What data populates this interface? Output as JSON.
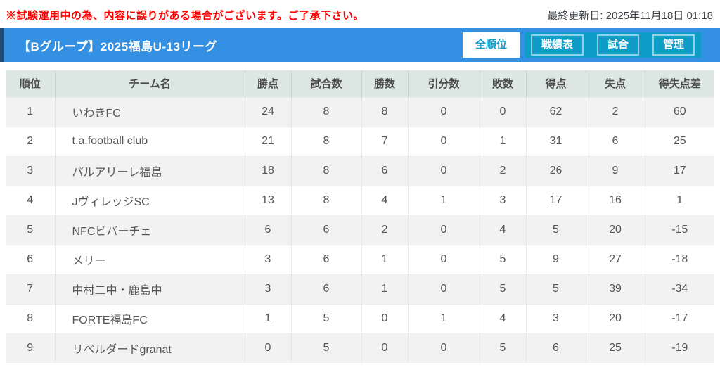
{
  "topbar": {
    "notice": "※試験運用中の為、内容に誤りがある場合がございます。ご了承下さい。",
    "last_updated": "最終更新日: 2025年11月18日 01:18"
  },
  "header": {
    "title": "【Bグループ】2025福島U-13リーグ",
    "tabs": [
      {
        "label": "全順位",
        "active": true
      },
      {
        "label": "戦績表",
        "active": false
      },
      {
        "label": "試合",
        "active": false
      },
      {
        "label": "管理",
        "active": false
      }
    ]
  },
  "colors": {
    "header_blue": "#3390e2",
    "accent_navy": "#1f4872",
    "tab_teal": "#0d9dc7",
    "notice_red": "#ff0000",
    "table_header_bg": "#dce6e2",
    "row_alt_gray": "#f2f2f2"
  },
  "table": {
    "columns": [
      {
        "key": "rank",
        "label": "順位"
      },
      {
        "key": "team",
        "label": "チーム名"
      },
      {
        "key": "points",
        "label": "勝点"
      },
      {
        "key": "played",
        "label": "試合数"
      },
      {
        "key": "wins",
        "label": "勝数"
      },
      {
        "key": "draws",
        "label": "引分数"
      },
      {
        "key": "losses",
        "label": "敗数"
      },
      {
        "key": "goals-for",
        "label": "得点"
      },
      {
        "key": "goals-against",
        "label": "失点"
      },
      {
        "key": "goal-diff",
        "label": "得失点差"
      }
    ],
    "rows": [
      [
        "1",
        "いわきFC",
        "24",
        "8",
        "8",
        "0",
        "0",
        "62",
        "2",
        "60"
      ],
      [
        "2",
        "t.a.football club",
        "21",
        "8",
        "7",
        "0",
        "1",
        "31",
        "6",
        "25"
      ],
      [
        "3",
        "パルアリーレ福島",
        "18",
        "8",
        "6",
        "0",
        "2",
        "26",
        "9",
        "17"
      ],
      [
        "4",
        "JヴィレッジSC",
        "13",
        "8",
        "4",
        "1",
        "3",
        "17",
        "16",
        "1"
      ],
      [
        "5",
        "NFCビバーチェ",
        "6",
        "6",
        "2",
        "0",
        "4",
        "5",
        "20",
        "-15"
      ],
      [
        "6",
        "メリー",
        "3",
        "6",
        "1",
        "0",
        "5",
        "9",
        "27",
        "-18"
      ],
      [
        "7",
        "中村二中・鹿島中",
        "3",
        "6",
        "1",
        "0",
        "5",
        "5",
        "39",
        "-34"
      ],
      [
        "8",
        "FORTE福島FC",
        "1",
        "5",
        "0",
        "1",
        "4",
        "3",
        "20",
        "-17"
      ],
      [
        "9",
        "リベルダードgranat",
        "0",
        "5",
        "0",
        "0",
        "5",
        "6",
        "25",
        "-19"
      ]
    ]
  }
}
